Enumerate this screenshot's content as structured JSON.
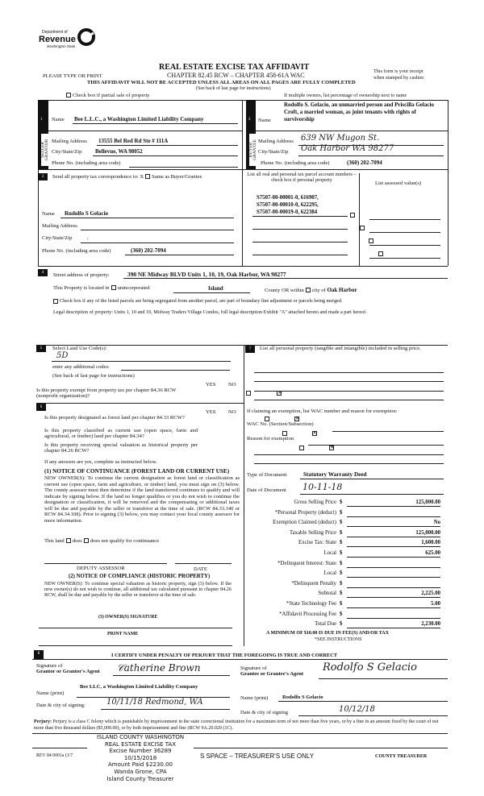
{
  "logo": {
    "dept": "Department of",
    "name": "Revenue",
    "state": "Washington State"
  },
  "header": {
    "title": "REAL ESTATE EXCISE TAX AFFIDAVIT",
    "please": "PLEASE TYPE OR PRINT",
    "chapter": "CHAPTER 82.45 RCW – CHAPTER 458-61A WAC",
    "receipt1": "This form is your receipt",
    "receipt2": "when stamped by cashier.",
    "warning": "THIS AFFIDAVIT WILL NOT BE ACCEPTED UNLESS ALL AREAS ON ALL PAGES ARE FULLY COMPLETED",
    "see_back": "(See back of last page for instructions)",
    "partial_sale": "Check box if partial sale of property",
    "multiple_owners": "If multiple owners, list percentage of ownership next to name"
  },
  "seller": {
    "section": "1",
    "side_label": "SELLER GRANTOR",
    "name_label": "Name",
    "name": "Bee L.L.C., a Washington Limited Liability Company",
    "mail_label": "Mailing Address",
    "mail": "13555 Bel Red Rd Ste # 111A",
    "city_label": "City/State/Zip",
    "city": "Bellevue, WA 98052",
    "phone_label": "Phone No. (including area code)",
    "phone": ""
  },
  "buyer": {
    "section": "2",
    "side_label": "BUYER GRANTEE",
    "name_label": "Name",
    "name": "Rodolfo S. Gelacio, an unmarried person and Priscilla Gelacio Croft, a married woman, as joint tenants with rights of survivorship",
    "mail_label": "Mailing Address",
    "mail": "639 NW Mugon St.",
    "city_label": "City/State/Zip",
    "city": "Oak Harbor WA 98277",
    "phone_label": "Phone No. (including area code)",
    "phone": "(360) 202-7094"
  },
  "section3": {
    "num": "3",
    "send": "Send all property tax correspondence to: X",
    "same": "Same as Buyer/Grantee",
    "name_label": "Name",
    "name": "Rudolfo S Gelacio",
    "mail_label": "Mailing Address",
    "city_label": "City/State/Zip",
    "city": ",",
    "phone_label": "Phone No. (including area code)",
    "phone": "(360) 202-7094",
    "parcel_header": "List all real and personal tax parcel account numbers – check box if personal property",
    "assessed_header": "List assessed value(s)",
    "parcels": [
      "S7507-00-00001-0, 616907,",
      "S7507-00-00010-0, 622295,",
      "S7507-00-00019-0, 622384"
    ]
  },
  "section4": {
    "num": "4",
    "street_label": "Street address of property:",
    "street": "390 NE Midway BLVD Units 1, 10, 19, Oak Harbor, WA  98277",
    "located": "This Property is located in",
    "unincorporated": "unincorporated",
    "county": "Island",
    "county_or": "County OR",
    "within": "within",
    "city_of": "city of",
    "city": "Oak Harbor",
    "segregated": "Check box if any of the listed parcels are being segregated from another parcel, are part of boundary line adjustment or parcels being merged.",
    "legal_label": "Legal description of property:",
    "legal": "Units 1, 10 and 19, Midway Traders Village Condos, full legal description Exhibit \"A\" attached hereto and made a part hereof."
  },
  "section5": {
    "num": "5",
    "select": "Select Land Use Code(s):",
    "code": "5D",
    "additional": "enter any additional codes:",
    "see_back": "(See back of last page for instructions)",
    "yes": "YES",
    "no": "NO",
    "exempt_q": "Is this property exempt from property tax per chapter 84.36 RCW (nonprofit organization)?"
  },
  "section6": {
    "num": "6",
    "yes": "YES",
    "no": "NO",
    "q1": "Is this property designated as forest land per chapter 84.33 RCW?",
    "q2": "Is this property classified as current use (open space, farm and agricultural, or timber) land per chapter 84.34?",
    "q3": "Is this property receiving special valuation as historical property per chapter 84.26 RCW?",
    "if_yes": "If any answers are yes, complete as instructed below.",
    "notice1_title": "(1) NOTICE OF CONTINUANCE (FOREST LAND OR CURRENT USE)",
    "notice1": "NEW OWNER(S): To continue the current designation as forest land or classification as current use (open space, farm and agriculture, or timber) land, you must sign on (3) below. The county assessor must then determine if the land transferred continues to qualify and will indicate by signing below. If the land no longer qualifies or you do not wish to continue the designation or classification, it will be removed and the compensating or additional taxes will be due and payable by the seller or transferor at the time of sale. (RCW 84.33.140 or RCW 84.34.108). Prior to signing (3) below, you may contact your local county assessor for more information.",
    "this_land": "This land",
    "does": "does",
    "does_not": "does not qualify for continuance",
    "deputy": "DEPUTY ASSESSOR",
    "date": "DATE",
    "notice2_title": "(2) NOTICE OF COMPLIANCE (HISTORIC PROPERTY)",
    "notice2": "NEW OWNER(S): To continue special valuation as historic property, sign (3) below. If the new owner(s) do not wish to continue, all additional tax calculated pursuant to chapter 84.26 RCW, shall be due and payable by the seller or transferor at the time of sale.",
    "owner_sig": "(3) OWNER(S) SIGNATURE",
    "print_name": "PRINT NAME"
  },
  "section7": {
    "num": "7",
    "personal": "List all personal property (tangible and intangible) included in selling price.",
    "exemption": "If claiming an exemption, list WAC number and reason for exemption:",
    "wac": "WAC No. (Section/Subsection)",
    "reason": "Reason for exemption",
    "doc_type_label": "Type of Document",
    "doc_type": "Statutory Warranty Deed",
    "doc_date_label": "Date of Document",
    "doc_date": "10-11-18",
    "rows": [
      {
        "label": "Gross Selling Price",
        "value": "125,000.00"
      },
      {
        "label": "*Personal Property (deduct)",
        "value": ""
      },
      {
        "label": "Exemption Claimed (deduct)",
        "value": "No"
      },
      {
        "label": "Taxable Selling Price",
        "value": "125,000.00"
      },
      {
        "label": "Excise Tax:  State",
        "value": "1,600.00"
      },
      {
        "label": "Local",
        "value": "625.00"
      },
      {
        "label": "*Delinquent Interest:  State",
        "value": ""
      },
      {
        "label": "Local",
        "value": ""
      },
      {
        "label": "*Delinquent Penalty",
        "value": ""
      },
      {
        "label": "Subtotal",
        "value": "2,225.00"
      },
      {
        "label": "*State Technology Fee",
        "value": "5.00"
      },
      {
        "label": "*Affidavit Processing Fee",
        "value": ""
      },
      {
        "label": "Total Due",
        "value": "2,230.00"
      }
    ],
    "dollar": "$",
    "minimum": "A MINIMUM OF $10.00 IS DUE IN FEE(S) AND/OR TAX",
    "see_instr": "*SEE INSTRUCTIONS"
  },
  "section8": {
    "num": "8",
    "certify": "I CERTIFY UNDER PENALTY OF PERJURY THAT THE FOREGOING IS TRUE AND CORRECT",
    "sig_of": "Signature of",
    "grantor_agent": "Grantor or Grantor's Agent",
    "grantee_agent": "Grantee or Grantee's Agent",
    "name_print": "Name (print)",
    "grantor_name": "Bee LLC, a Washington Limited Liability Company",
    "grantee_name": "Rodolfo S Gelacio",
    "date_city": "Date & city of signing:",
    "grantor_date": "10/11/18  Redmond, WA",
    "date_city2": "Date & city of signing",
    "grantee_date": "10/12/18",
    "perjury_label": "Perjury:",
    "perjury": "Perjury is a class C felony which is punishable by imprisonment in the state correctional institution for a maximum term of not more than five years, or by a fine in an amount fixed by the court of not more than five thousand dollars ($5,000.00), or by both imprisonment and fine (RCW 9A.20.020 (1C)."
  },
  "footer": {
    "rev": "REV 84 0001a (1/7",
    "space": "S SPACE – TREASURER'S USE ONLY",
    "treasurer": "COUNTY TREASURER",
    "stamp": [
      "ISLAND COUNTY WASHINGTON",
      "REAL ESTATE EXCISE TAX",
      "Excise Number 36289",
      "10/15/2018",
      "Amount Paid $2230.00",
      "Wanda Grone, CPA",
      "Island County Treasurer"
    ]
  }
}
